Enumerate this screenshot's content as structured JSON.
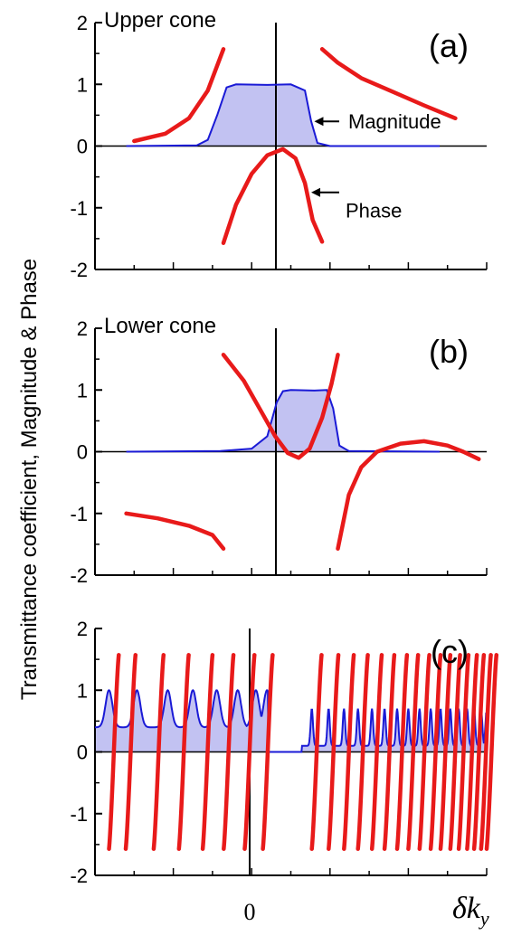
{
  "figure": {
    "ylabel": "Transmittance coefficient, Magnitude & Phase",
    "xlabel": "δk",
    "xlabel_sub": "y",
    "xtick_zero": "0"
  },
  "colors": {
    "magnitude_line": "#1a1ad6",
    "magnitude_fill": "#c2c2f2",
    "phase": "#e81a1a",
    "axis": "#000000"
  },
  "chart_data": [
    {
      "type": "line",
      "panel_label": "(a)",
      "title": "Upper cone",
      "ylim": [
        -2,
        2
      ],
      "y_ticks": [
        "2",
        "1",
        "0",
        "-1",
        "-2"
      ],
      "annotations": [
        "Magnitude",
        "Phase"
      ],
      "series": [
        {
          "name": "Magnitude",
          "points": [
            [
              -1.0,
              0.0
            ],
            [
              -0.55,
              0.01
            ],
            [
              -0.48,
              0.1
            ],
            [
              -0.42,
              0.5
            ],
            [
              -0.36,
              0.95
            ],
            [
              -0.3,
              1.0
            ],
            [
              -0.1,
              0.99
            ],
            [
              0.05,
              1.0
            ],
            [
              0.14,
              0.9
            ],
            [
              0.18,
              0.4
            ],
            [
              0.22,
              0.05
            ],
            [
              0.3,
              0.0
            ],
            [
              1.0,
              0.0
            ]
          ]
        },
        {
          "name": "Phase",
          "segments": [
            [
              [
                -0.95,
                0.08
              ],
              [
                -0.75,
                0.2
              ],
              [
                -0.6,
                0.45
              ],
              [
                -0.48,
                0.9
              ],
              [
                -0.38,
                1.57
              ]
            ],
            [
              [
                -0.38,
                -1.57
              ],
              [
                -0.3,
                -0.95
              ],
              [
                -0.2,
                -0.45
              ],
              [
                -0.1,
                -0.15
              ],
              [
                0.0,
                -0.05
              ],
              [
                0.08,
                -0.2
              ],
              [
                0.14,
                -0.6
              ],
              [
                0.19,
                -1.2
              ],
              [
                0.25,
                -1.55
              ]
            ],
            [
              [
                0.25,
                1.57
              ],
              [
                0.35,
                1.35
              ],
              [
                0.5,
                1.1
              ],
              [
                0.7,
                0.88
              ],
              [
                0.9,
                0.66
              ],
              [
                1.1,
                0.45
              ]
            ]
          ]
        }
      ]
    },
    {
      "type": "line",
      "panel_label": "(b)",
      "title": "Lower cone",
      "ylim": [
        -2,
        2
      ],
      "y_ticks": [
        "2",
        "1",
        "0",
        "-1",
        "-2"
      ],
      "series": [
        {
          "name": "Magnitude",
          "points": [
            [
              -1.0,
              0.0
            ],
            [
              -0.4,
              0.01
            ],
            [
              -0.2,
              0.05
            ],
            [
              -0.1,
              0.25
            ],
            [
              -0.04,
              0.8
            ],
            [
              0.0,
              0.98
            ],
            [
              0.05,
              1.0
            ],
            [
              0.2,
              0.99
            ],
            [
              0.28,
              1.0
            ],
            [
              0.32,
              0.7
            ],
            [
              0.36,
              0.1
            ],
            [
              0.42,
              0.01
            ],
            [
              1.0,
              0.0
            ]
          ]
        },
        {
          "name": "Phase",
          "segments": [
            [
              [
                -1.0,
                -1.0
              ],
              [
                -0.8,
                -1.08
              ],
              [
                -0.6,
                -1.2
              ],
              [
                -0.45,
                -1.35
              ],
              [
                -0.38,
                -1.57
              ]
            ],
            [
              [
                -0.38,
                1.57
              ],
              [
                -0.25,
                1.15
              ],
              [
                -0.15,
                0.7
              ],
              [
                -0.05,
                0.25
              ],
              [
                0.03,
                -0.02
              ],
              [
                0.1,
                -0.1
              ],
              [
                0.17,
                0.05
              ],
              [
                0.25,
                0.55
              ],
              [
                0.31,
                1.1
              ],
              [
                0.35,
                1.57
              ]
            ],
            [
              [
                0.35,
                -1.57
              ],
              [
                0.42,
                -0.7
              ],
              [
                0.5,
                -0.25
              ],
              [
                0.6,
                0.0
              ],
              [
                0.75,
                0.13
              ],
              [
                0.9,
                0.17
              ],
              [
                1.05,
                0.1
              ],
              [
                1.15,
                0.0
              ],
              [
                1.25,
                -0.12
              ]
            ]
          ]
        }
      ]
    },
    {
      "type": "line",
      "panel_label": "(c)",
      "title": "",
      "ylim": [
        -2,
        2
      ],
      "y_ticks": [
        "2",
        "1",
        "0",
        "-1",
        "-2"
      ],
      "x_ticks": [
        "0"
      ],
      "series": [
        {
          "name": "Magnitude",
          "peaks_left": [
            -1.0,
            -0.8,
            -0.58,
            -0.4,
            -0.23,
            -0.08,
            0.05,
            0.13
          ],
          "trough": 0.4,
          "gap_from": 0.14,
          "gap_to": 0.38,
          "peaks_right": [
            0.45,
            0.57,
            0.68,
            0.78,
            0.88,
            0.97,
            1.06,
            1.14,
            1.22,
            1.3,
            1.37,
            1.44,
            1.5,
            1.56,
            1.61,
            1.66,
            1.7
          ],
          "right_peak_height": 1.0,
          "right_trough": 0.1
        },
        {
          "name": "Phase",
          "branch_x": [
            -1.0,
            -0.88,
            -0.68,
            -0.5,
            -0.33,
            -0.18,
            -0.03,
            0.1,
            0.45,
            0.57,
            0.68,
            0.78,
            0.88,
            0.97,
            1.06,
            1.14,
            1.22,
            1.3,
            1.37,
            1.44,
            1.5,
            1.56,
            1.61,
            1.66,
            1.7
          ],
          "range": [
            -1.57,
            1.57
          ]
        }
      ]
    }
  ]
}
